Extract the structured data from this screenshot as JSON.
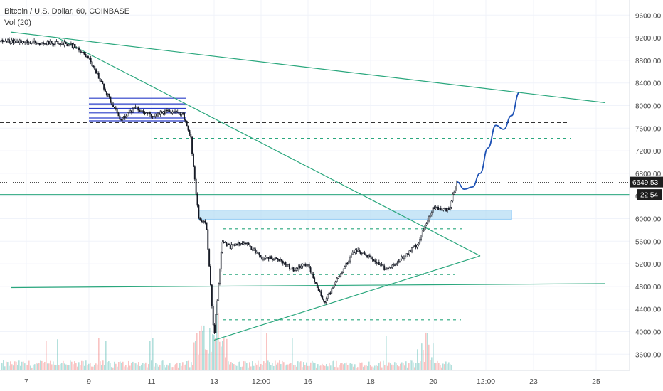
{
  "legend": {
    "symbol_line": "Bitcoin / U.S. Dollar, 60, COINBASE",
    "volume_line": "Vol (20)"
  },
  "colors": {
    "up": "#26a69a",
    "down": "#ef5350",
    "candle_body": "#131722",
    "trendline": "#2aa77d",
    "zone_fill": "#b3dcf5",
    "zone_line": "#2196f3",
    "range_line": "#2a3ec9",
    "projection": "#1e52b5",
    "dashed_level": "#2aa77d",
    "price_line": "#333333",
    "axis_text": "#4a4a4a"
  },
  "price_axis": {
    "ticks": [
      "9600.00",
      "9200.00",
      "8800.00",
      "8400.00",
      "8000.00",
      "7600.00",
      "7200.00",
      "6800.00",
      "6400.00",
      "6000.00",
      "5600.00",
      "5200.00",
      "4800.00",
      "4400.00",
      "4000.00",
      "3600.00"
    ],
    "current_price_label": "6649.53",
    "countdown_label": "22:54"
  },
  "time_axis": {
    "ticks": [
      "7",
      "9",
      "11",
      "13",
      "12:00",
      "16",
      "18",
      "20",
      "12:00",
      "23",
      "25"
    ]
  },
  "chart_data": {
    "type": "candlestick",
    "title": "Bitcoin / U.S. Dollar, 60, COINBASE",
    "indicator": "Vol (20)",
    "ylim": [
      3300,
      9900
    ],
    "y_ticks": [
      9600,
      9200,
      8800,
      8400,
      8000,
      7600,
      7200,
      6800,
      6400,
      6000,
      5600,
      5200,
      4800,
      4400,
      4000,
      3600
    ],
    "x_labels": [
      "7",
      "9",
      "11",
      "13",
      "12:00",
      "16",
      "18",
      "20",
      "12:00",
      "23",
      "25"
    ],
    "current_price": 6649.53,
    "price_path": [
      {
        "t": "7 Mar 00:00",
        "p": 9140
      },
      {
        "t": "7 Mar 12:00",
        "p": 9090
      },
      {
        "t": "8 Mar 00:00",
        "p": 9120
      },
      {
        "t": "8 Mar 12:00",
        "p": 9060
      },
      {
        "t": "9 Mar 00:00",
        "p": 8830
      },
      {
        "t": "9 Mar 12:00",
        "p": 8300
      },
      {
        "t": "10 Mar 00:00",
        "p": 7760
      },
      {
        "t": "10 Mar 12:00",
        "p": 7950
      },
      {
        "t": "11 Mar 00:00",
        "p": 7820
      },
      {
        "t": "11 Mar 12:00",
        "p": 7900
      },
      {
        "t": "12 Mar 00:00",
        "p": 7850
      },
      {
        "t": "12 Mar 06:00",
        "p": 7450
      },
      {
        "t": "12 Mar 12:00",
        "p": 6000
      },
      {
        "t": "12 Mar 18:00",
        "p": 5900
      },
      {
        "t": "13 Mar 00:00",
        "p": 3900
      },
      {
        "t": "13 Mar 06:00",
        "p": 5600
      },
      {
        "t": "13 Mar 12:00",
        "p": 5500
      },
      {
        "t": "14 Mar 00:00",
        "p": 5600
      },
      {
        "t": "14 Mar 12:00",
        "p": 5300
      },
      {
        "t": "15 Mar 00:00",
        "p": 5300
      },
      {
        "t": "15 Mar 12:00",
        "p": 5100
      },
      {
        "t": "16 Mar 00:00",
        "p": 5200
      },
      {
        "t": "16 Mar 12:00",
        "p": 4500
      },
      {
        "t": "17 Mar 00:00",
        "p": 5000
      },
      {
        "t": "17 Mar 12:00",
        "p": 5450
      },
      {
        "t": "18 Mar 00:00",
        "p": 5300
      },
      {
        "t": "18 Mar 12:00",
        "p": 5100
      },
      {
        "t": "19 Mar 00:00",
        "p": 5300
      },
      {
        "t": "19 Mar 12:00",
        "p": 5550
      },
      {
        "t": "20 Mar 00:00",
        "p": 6200
      },
      {
        "t": "20 Mar 12:00",
        "p": 6150
      },
      {
        "t": "20 Mar 18:00",
        "p": 6650
      }
    ],
    "price_levels_dashed": [
      7700,
      7420,
      5820,
      5010,
      4210
    ],
    "horizontal_lines": [
      6640,
      6420
    ],
    "consolidation_range": {
      "from": "9 Mar 00:00",
      "to": "12 Mar 00:00",
      "levels": [
        8130,
        8030,
        7950,
        7870,
        7780,
        7730
      ]
    },
    "support_zone": {
      "from": "12 Mar 12:00",
      "to": "22 Mar 12:00",
      "low": 5980,
      "high": 6150
    },
    "trendlines": [
      {
        "from": {
          "t": "6 Mar 12:00",
          "p": 9300
        },
        "to": {
          "t": "25 Mar 12:00",
          "p": 8050
        }
      },
      {
        "from": {
          "t": "8 Mar 00:00",
          "p": 9200
        },
        "to": {
          "t": "21 Mar 12:00",
          "p": 5340
        }
      },
      {
        "from": {
          "t": "13 Mar 00:00",
          "p": 3850
        },
        "to": {
          "t": "21 Mar 12:00",
          "p": 5340
        }
      },
      {
        "from": {
          "t": "6 Mar 12:00",
          "p": 4780
        },
        "to": {
          "t": "25 Mar 12:00",
          "p": 4850
        }
      }
    ],
    "projection": [
      {
        "t": "20 Mar 18:00",
        "p": 6650
      },
      {
        "t": "21 Mar 00:00",
        "p": 6520
      },
      {
        "t": "21 Mar 06:00",
        "p": 6560
      },
      {
        "t": "21 Mar 12:00",
        "p": 6800
      },
      {
        "t": "21 Mar 18:00",
        "p": 7250
      },
      {
        "t": "22 Mar 00:00",
        "p": 7650
      },
      {
        "t": "22 Mar 06:00",
        "p": 7580
      },
      {
        "t": "22 Mar 12:00",
        "p": 7820
      },
      {
        "t": "22 Mar 18:00",
        "p": 8230
      }
    ]
  }
}
